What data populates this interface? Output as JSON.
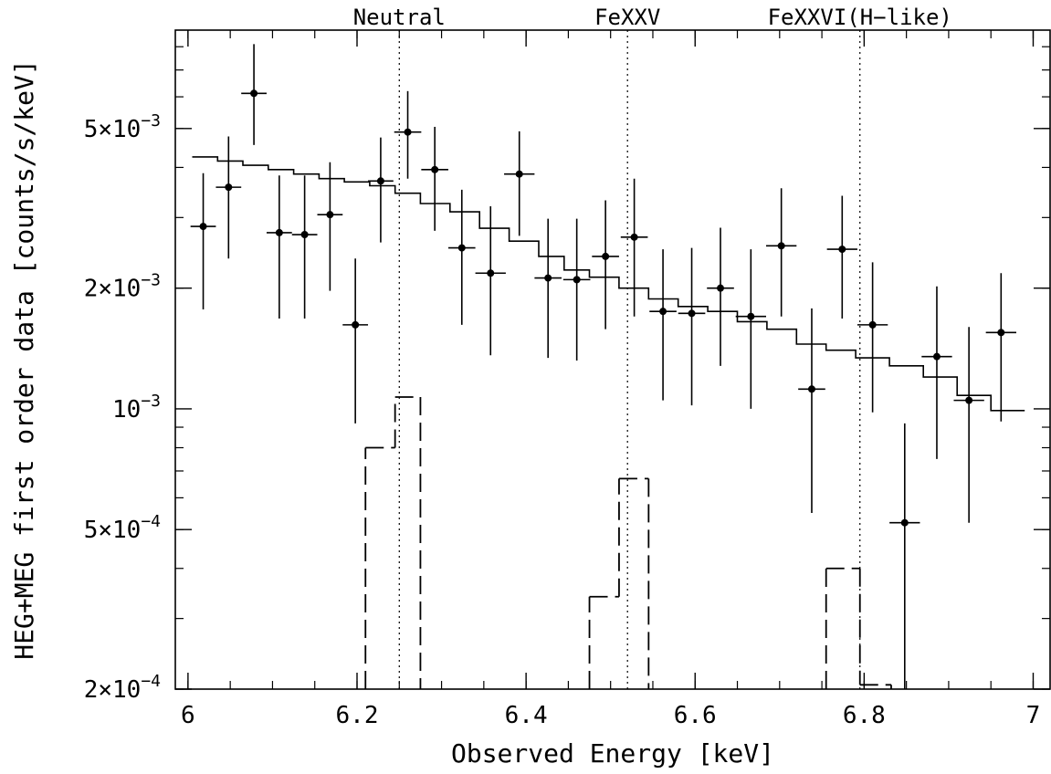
{
  "chart_data": {
    "type": "scatter",
    "xlabel": "Observed Energy [keV]",
    "ylabel": "HEG+MEG first order data [counts/s/keV]",
    "xlim": [
      5.985,
      7.02
    ],
    "ylim": [
      0.0002,
      0.0088
    ],
    "yscale": "log",
    "x_ticks": [
      {
        "value": 6.0,
        "label": "6"
      },
      {
        "value": 6.2,
        "label": "6.2"
      },
      {
        "value": 6.4,
        "label": "6.4"
      },
      {
        "value": 6.6,
        "label": "6.6"
      },
      {
        "value": 6.8,
        "label": "6.8"
      },
      {
        "value": 7.0,
        "label": "7"
      }
    ],
    "y_ticks": [
      {
        "value": 0.005,
        "mant": "5×10",
        "exp": "−3"
      },
      {
        "value": 0.002,
        "mant": "2×10",
        "exp": "−3"
      },
      {
        "value": 0.001,
        "mant": "10",
        "exp": "−3"
      },
      {
        "value": 0.0005,
        "mant": "5×10",
        "exp": "−4"
      },
      {
        "value": 0.0002,
        "mant": "2×10",
        "exp": "−4"
      }
    ],
    "reference_lines": [
      {
        "x": 6.25,
        "label": "Neutral"
      },
      {
        "x": 6.52,
        "label": "FeXXV"
      },
      {
        "x": 6.795,
        "label": "FeXXVI(H−like)"
      }
    ],
    "data_points": [
      {
        "x": 6.018,
        "y": 0.00285,
        "xerr": 0.015,
        "ylo": 0.00177,
        "yhi": 0.00387
      },
      {
        "x": 6.048,
        "y": 0.00357,
        "xerr": 0.015,
        "ylo": 0.00237,
        "yhi": 0.00478
      },
      {
        "x": 6.078,
        "y": 0.00612,
        "xerr": 0.015,
        "ylo": 0.00455,
        "yhi": 0.00812
      },
      {
        "x": 6.108,
        "y": 0.00275,
        "xerr": 0.015,
        "ylo": 0.00168,
        "yhi": 0.00382
      },
      {
        "x": 6.138,
        "y": 0.00272,
        "xerr": 0.015,
        "ylo": 0.00168,
        "yhi": 0.00382
      },
      {
        "x": 6.168,
        "y": 0.00305,
        "xerr": 0.015,
        "ylo": 0.00197,
        "yhi": 0.00412
      },
      {
        "x": 6.198,
        "y": 0.00162,
        "xerr": 0.015,
        "ylo": 0.00092,
        "yhi": 0.00237
      },
      {
        "x": 6.228,
        "y": 0.0037,
        "xerr": 0.015,
        "ylo": 0.0026,
        "yhi": 0.00475
      },
      {
        "x": 6.26,
        "y": 0.0049,
        "xerr": 0.016,
        "ylo": 0.00375,
        "yhi": 0.0062
      },
      {
        "x": 6.292,
        "y": 0.00395,
        "xerr": 0.016,
        "ylo": 0.00278,
        "yhi": 0.00505
      },
      {
        "x": 6.324,
        "y": 0.00252,
        "xerr": 0.016,
        "ylo": 0.00162,
        "yhi": 0.00352
      },
      {
        "x": 6.358,
        "y": 0.00218,
        "xerr": 0.018,
        "ylo": 0.00136,
        "yhi": 0.0032
      },
      {
        "x": 6.392,
        "y": 0.00385,
        "xerr": 0.018,
        "ylo": 0.0027,
        "yhi": 0.00492
      },
      {
        "x": 6.426,
        "y": 0.00212,
        "xerr": 0.016,
        "ylo": 0.00134,
        "yhi": 0.00298
      },
      {
        "x": 6.46,
        "y": 0.0021,
        "xerr": 0.016,
        "ylo": 0.00132,
        "yhi": 0.00298
      },
      {
        "x": 6.494,
        "y": 0.0024,
        "xerr": 0.016,
        "ylo": 0.00158,
        "yhi": 0.00331
      },
      {
        "x": 6.528,
        "y": 0.00268,
        "xerr": 0.016,
        "ylo": 0.0017,
        "yhi": 0.00375
      },
      {
        "x": 6.562,
        "y": 0.00175,
        "xerr": 0.016,
        "ylo": 0.00105,
        "yhi": 0.0025
      },
      {
        "x": 6.596,
        "y": 0.00173,
        "xerr": 0.016,
        "ylo": 0.00102,
        "yhi": 0.00252
      },
      {
        "x": 6.63,
        "y": 0.002,
        "xerr": 0.016,
        "ylo": 0.00128,
        "yhi": 0.00283
      },
      {
        "x": 6.666,
        "y": 0.0017,
        "xerr": 0.018,
        "ylo": 0.001,
        "yhi": 0.0025
      },
      {
        "x": 6.702,
        "y": 0.00255,
        "xerr": 0.018,
        "ylo": 0.0017,
        "yhi": 0.00355
      },
      {
        "x": 6.738,
        "y": 0.00112,
        "xerr": 0.016,
        "ylo": 0.00055,
        "yhi": 0.00178
      },
      {
        "x": 6.774,
        "y": 0.0025,
        "xerr": 0.018,
        "ylo": 0.00168,
        "yhi": 0.0034
      },
      {
        "x": 6.81,
        "y": 0.00162,
        "xerr": 0.018,
        "ylo": 0.00098,
        "yhi": 0.00232
      },
      {
        "x": 6.848,
        "y": 0.00052,
        "xerr": 0.018,
        "ylo": 0.00018,
        "yhi": 0.00092
      },
      {
        "x": 6.886,
        "y": 0.00135,
        "xerr": 0.018,
        "ylo": 0.00075,
        "yhi": 0.00202
      },
      {
        "x": 6.924,
        "y": 0.00105,
        "xerr": 0.018,
        "ylo": 0.00052,
        "yhi": 0.0016
      },
      {
        "x": 6.962,
        "y": 0.00155,
        "xerr": 0.018,
        "ylo": 0.00093,
        "yhi": 0.00218
      }
    ],
    "model_steps": [
      {
        "x0": 6.005,
        "x1": 6.035,
        "y": 0.00425
      },
      {
        "x0": 6.035,
        "x1": 6.065,
        "y": 0.00415
      },
      {
        "x0": 6.065,
        "x1": 6.095,
        "y": 0.00405
      },
      {
        "x0": 6.095,
        "x1": 6.125,
        "y": 0.00395
      },
      {
        "x0": 6.125,
        "x1": 6.155,
        "y": 0.00385
      },
      {
        "x0": 6.155,
        "x1": 6.185,
        "y": 0.00375
      },
      {
        "x0": 6.185,
        "x1": 6.215,
        "y": 0.00368
      },
      {
        "x0": 6.215,
        "x1": 6.245,
        "y": 0.0036
      },
      {
        "x0": 6.245,
        "x1": 6.275,
        "y": 0.00345
      },
      {
        "x0": 6.275,
        "x1": 6.31,
        "y": 0.00325
      },
      {
        "x0": 6.31,
        "x1": 6.345,
        "y": 0.0031
      },
      {
        "x0": 6.345,
        "x1": 6.38,
        "y": 0.00282
      },
      {
        "x0": 6.38,
        "x1": 6.415,
        "y": 0.00262
      },
      {
        "x0": 6.415,
        "x1": 6.445,
        "y": 0.0024
      },
      {
        "x0": 6.445,
        "x1": 6.475,
        "y": 0.00222
      },
      {
        "x0": 6.475,
        "x1": 6.51,
        "y": 0.00213
      },
      {
        "x0": 6.51,
        "x1": 6.545,
        "y": 0.002
      },
      {
        "x0": 6.545,
        "x1": 6.58,
        "y": 0.00188
      },
      {
        "x0": 6.58,
        "x1": 6.615,
        "y": 0.0018
      },
      {
        "x0": 6.615,
        "x1": 6.65,
        "y": 0.00175
      },
      {
        "x0": 6.65,
        "x1": 6.685,
        "y": 0.00165
      },
      {
        "x0": 6.685,
        "x1": 6.72,
        "y": 0.00158
      },
      {
        "x0": 6.72,
        "x1": 6.755,
        "y": 0.00145
      },
      {
        "x0": 6.755,
        "x1": 6.79,
        "y": 0.0014
      },
      {
        "x0": 6.79,
        "x1": 6.83,
        "y": 0.00134
      },
      {
        "x0": 6.83,
        "x1": 6.87,
        "y": 0.00128
      },
      {
        "x0": 6.87,
        "x1": 6.91,
        "y": 0.0012
      },
      {
        "x0": 6.91,
        "x1": 6.95,
        "y": 0.00108
      },
      {
        "x0": 6.95,
        "x1": 6.99,
        "y": 0.00099
      }
    ],
    "line_components": [
      {
        "x0": 6.21,
        "x1": 6.245,
        "y": 0.0008
      },
      {
        "x0": 6.245,
        "x1": 6.275,
        "y": 0.00107
      },
      {
        "x0": 6.475,
        "x1": 6.51,
        "y": 0.00034
      },
      {
        "x0": 6.51,
        "x1": 6.545,
        "y": 0.00067
      },
      {
        "x0": 6.755,
        "x1": 6.795,
        "y": 0.0004
      },
      {
        "x0": 6.795,
        "x1": 6.832,
        "y": 0.000205
      }
    ]
  }
}
